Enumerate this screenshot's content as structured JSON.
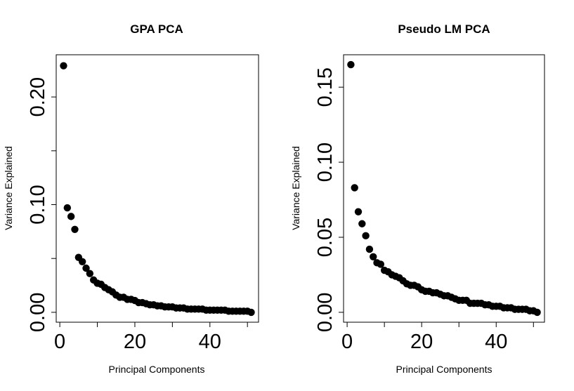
{
  "chart_data": [
    {
      "type": "scatter",
      "title": "GPA PCA",
      "xlabel": "Principal Components",
      "ylabel": "Variance Explained",
      "xlim": [
        -0.96,
        52.96
      ],
      "ylim": [
        -0.0092,
        0.2392
      ],
      "xticks": [
        0,
        10,
        20,
        30,
        40,
        50
      ],
      "xtick_labels": [
        "0",
        "",
        "20",
        "",
        "40",
        ""
      ],
      "yticks": [
        0.0,
        0.05,
        0.1,
        0.15,
        0.2
      ],
      "ytick_labels": [
        "0.00",
        "",
        "0.10",
        "",
        "0.20"
      ],
      "grid": false,
      "x": [
        1,
        2,
        3,
        4,
        5,
        6,
        7,
        8,
        9,
        10,
        11,
        12,
        13,
        14,
        15,
        16,
        17,
        18,
        19,
        20,
        21,
        22,
        23,
        24,
        25,
        26,
        27,
        28,
        29,
        30,
        31,
        32,
        33,
        34,
        35,
        36,
        37,
        38,
        39,
        40,
        41,
        42,
        43,
        44,
        45,
        46,
        47,
        48,
        49,
        50,
        51
      ],
      "y": [
        0.229,
        0.097,
        0.089,
        0.077,
        0.051,
        0.047,
        0.041,
        0.036,
        0.03,
        0.027,
        0.026,
        0.023,
        0.021,
        0.019,
        0.016,
        0.014,
        0.014,
        0.012,
        0.012,
        0.011,
        0.009,
        0.009,
        0.008,
        0.007,
        0.007,
        0.006,
        0.006,
        0.005,
        0.005,
        0.005,
        0.004,
        0.004,
        0.004,
        0.003,
        0.003,
        0.003,
        0.003,
        0.003,
        0.002,
        0.002,
        0.002,
        0.002,
        0.002,
        0.002,
        0.001,
        0.001,
        0.001,
        0.001,
        0.001,
        0.001,
        0.0
      ]
    },
    {
      "type": "scatter",
      "title": "Pseudo LM PCA",
      "xlabel": "Principal Components",
      "ylabel": "Variance Explained",
      "xlim": [
        -0.96,
        52.96
      ],
      "ylim": [
        -0.0066,
        0.1716
      ],
      "xticks": [
        0,
        10,
        20,
        30,
        40,
        50
      ],
      "xtick_labels": [
        "0",
        "",
        "20",
        "",
        "40",
        ""
      ],
      "yticks": [
        0.0,
        0.05,
        0.1,
        0.15
      ],
      "ytick_labels": [
        "0.00",
        "0.05",
        "0.10",
        "0.15"
      ],
      "grid": false,
      "x": [
        1,
        2,
        3,
        4,
        5,
        6,
        7,
        8,
        9,
        10,
        11,
        12,
        13,
        14,
        15,
        16,
        17,
        18,
        19,
        20,
        21,
        22,
        23,
        24,
        25,
        26,
        27,
        28,
        29,
        30,
        31,
        32,
        33,
        34,
        35,
        36,
        37,
        38,
        39,
        40,
        41,
        42,
        43,
        44,
        45,
        46,
        47,
        48,
        49,
        50,
        51
      ],
      "y": [
        0.165,
        0.083,
        0.067,
        0.059,
        0.051,
        0.042,
        0.037,
        0.033,
        0.032,
        0.028,
        0.027,
        0.025,
        0.024,
        0.023,
        0.021,
        0.019,
        0.018,
        0.018,
        0.017,
        0.015,
        0.014,
        0.014,
        0.013,
        0.013,
        0.012,
        0.011,
        0.011,
        0.01,
        0.009,
        0.008,
        0.008,
        0.008,
        0.006,
        0.006,
        0.006,
        0.006,
        0.005,
        0.005,
        0.004,
        0.004,
        0.004,
        0.003,
        0.003,
        0.003,
        0.002,
        0.002,
        0.002,
        0.002,
        0.001,
        0.001,
        0.0
      ]
    }
  ]
}
